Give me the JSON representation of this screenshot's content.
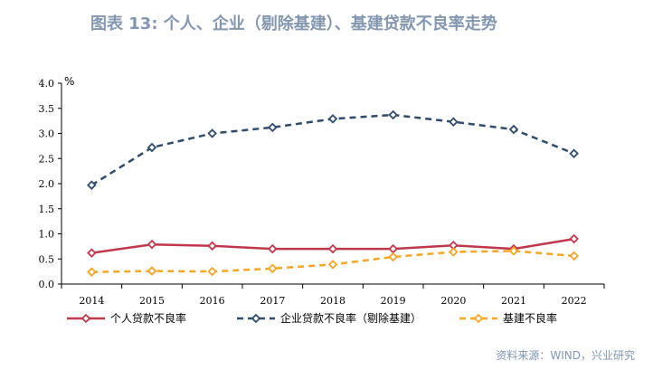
{
  "title": "图表 13: 个人、企业（剔除基建）、基建贷款不良率走势",
  "source": "资料来源：WIND，兴业研究",
  "chart_data": {
    "type": "line",
    "unit_label": "%",
    "categories": [
      "2014",
      "2015",
      "2016",
      "2017",
      "2018",
      "2019",
      "2020",
      "2021",
      "2022"
    ],
    "ylim": [
      0,
      4.0
    ],
    "yticks": [
      "0.0",
      "0.5",
      "1.0",
      "1.5",
      "2.0",
      "2.5",
      "3.0",
      "3.5",
      "4.0"
    ],
    "grid": false,
    "legend_position": "bottom",
    "series": [
      {
        "name": "个人贷款不良率",
        "color": "#c0384b",
        "style": "solid",
        "values": [
          0.62,
          0.79,
          0.76,
          0.7,
          0.7,
          0.7,
          0.77,
          0.7,
          0.9
        ]
      },
      {
        "name": "企业贷款不良率（剔除基建）",
        "color": "#2f4b6c",
        "style": "dashed",
        "values": [
          1.97,
          2.72,
          3.0,
          3.12,
          3.29,
          3.37,
          3.23,
          3.08,
          2.6
        ]
      },
      {
        "name": "基建不良率",
        "color": "#f5a623",
        "style": "dashed",
        "values": [
          0.24,
          0.26,
          0.25,
          0.31,
          0.39,
          0.54,
          0.64,
          0.66,
          0.56
        ]
      }
    ]
  }
}
